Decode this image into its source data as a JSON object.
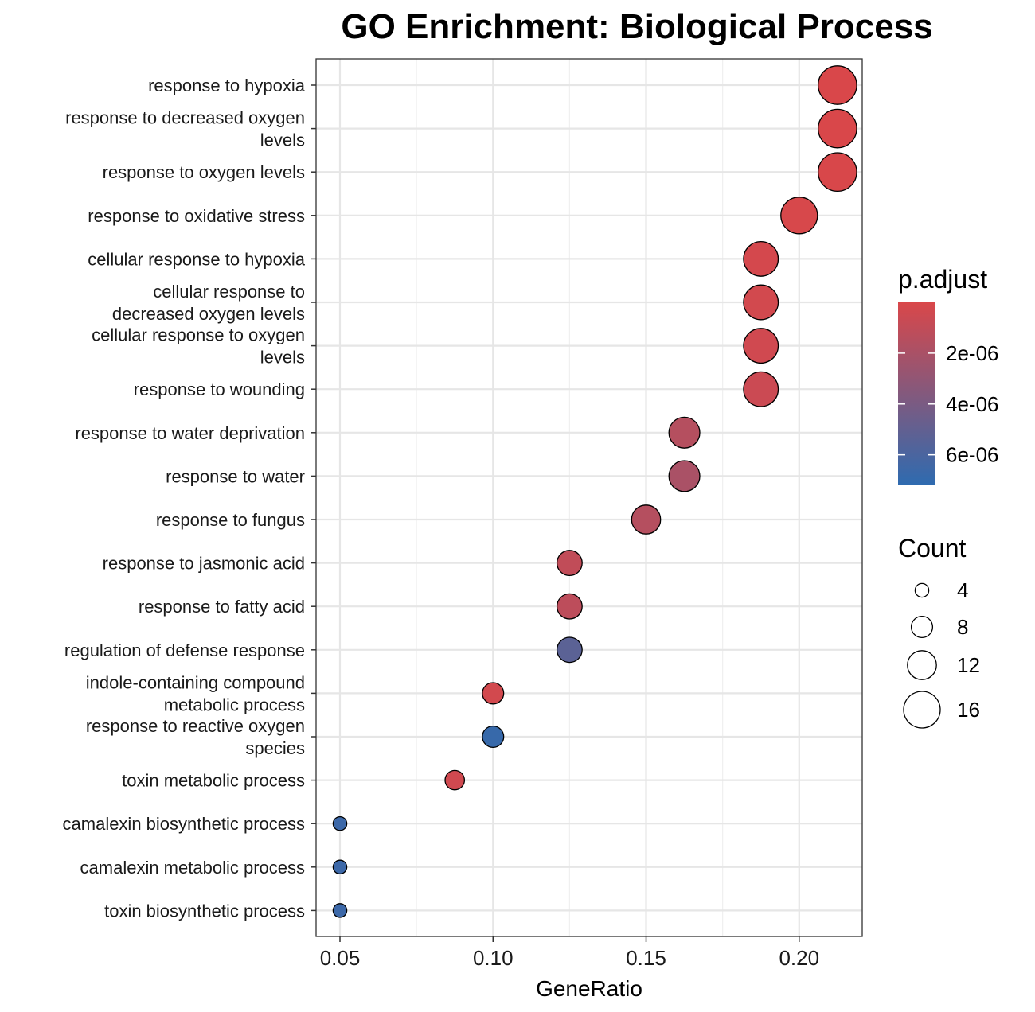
{
  "chart_data": {
    "type": "scatter",
    "title": "GO Enrichment: Biological Process",
    "xlabel": "GeneRatio",
    "ylabel": "",
    "xlim": [
      0.0422,
      0.2206
    ],
    "x_ticks": [
      "0.05",
      "0.10",
      "0.15",
      "0.20"
    ],
    "x_tick_values": [
      0.05,
      0.1,
      0.15,
      0.2
    ],
    "grid": true,
    "legend_position": "right",
    "categories": [
      [
        "response to hypoxia"
      ],
      [
        "response to decreased oxygen",
        "levels"
      ],
      [
        "response to oxygen levels"
      ],
      [
        "response to oxidative stress"
      ],
      [
        "cellular response to hypoxia"
      ],
      [
        "cellular response to",
        "decreased oxygen levels"
      ],
      [
        "cellular response to oxygen",
        "levels"
      ],
      [
        "response to wounding"
      ],
      [
        "response to water deprivation"
      ],
      [
        "response to water"
      ],
      [
        "response to fungus"
      ],
      [
        "response to jasmonic acid"
      ],
      [
        "response to fatty acid"
      ],
      [
        "regulation of defense response"
      ],
      [
        "indole-containing compound",
        "metabolic process"
      ],
      [
        "response to reactive oxygen",
        "species"
      ],
      [
        "toxin metabolic process"
      ],
      [
        "camalexin biosynthetic process"
      ],
      [
        "camalexin metabolic process"
      ],
      [
        "toxin biosynthetic process"
      ]
    ],
    "gene_ratio": [
      0.2125,
      0.2125,
      0.2125,
      0.2,
      0.1875,
      0.1875,
      0.1875,
      0.1875,
      0.1625,
      0.1625,
      0.15,
      0.125,
      0.125,
      0.125,
      0.1,
      0.1,
      0.0875,
      0.05,
      0.05,
      0.05
    ],
    "count": [
      17,
      17,
      17,
      16,
      15,
      15,
      15,
      15,
      13,
      13,
      12,
      10,
      10,
      10,
      8,
      8,
      7,
      4,
      4,
      4
    ],
    "p_adjust": [
      2e-08,
      2e-08,
      3e-08,
      1e-07,
      2e-07,
      3e-07,
      4e-07,
      6e-07,
      1.5e-06,
      2e-06,
      1.5e-06,
      1e-06,
      1.2e-06,
      5.3e-06,
      3e-07,
      6.8e-06,
      4e-07,
      6.6e-06,
      6.6e-06,
      6.6e-06
    ],
    "color_scale": {
      "title": "p.adjust",
      "low_color": "#d9474a",
      "high_color": "#2e6bb0",
      "range": [
        0,
        7.2e-06
      ],
      "ticks": [
        {
          "value": 2e-06,
          "label": "2e-06"
        },
        {
          "value": 4e-06,
          "label": "4e-06"
        },
        {
          "value": 6e-06,
          "label": "6e-06"
        }
      ]
    },
    "size_scale": {
      "title": "Count",
      "ticks": [
        {
          "value": 4,
          "label": "4"
        },
        {
          "value": 8,
          "label": "8"
        },
        {
          "value": 12,
          "label": "12"
        },
        {
          "value": 16,
          "label": "16"
        }
      ]
    }
  }
}
